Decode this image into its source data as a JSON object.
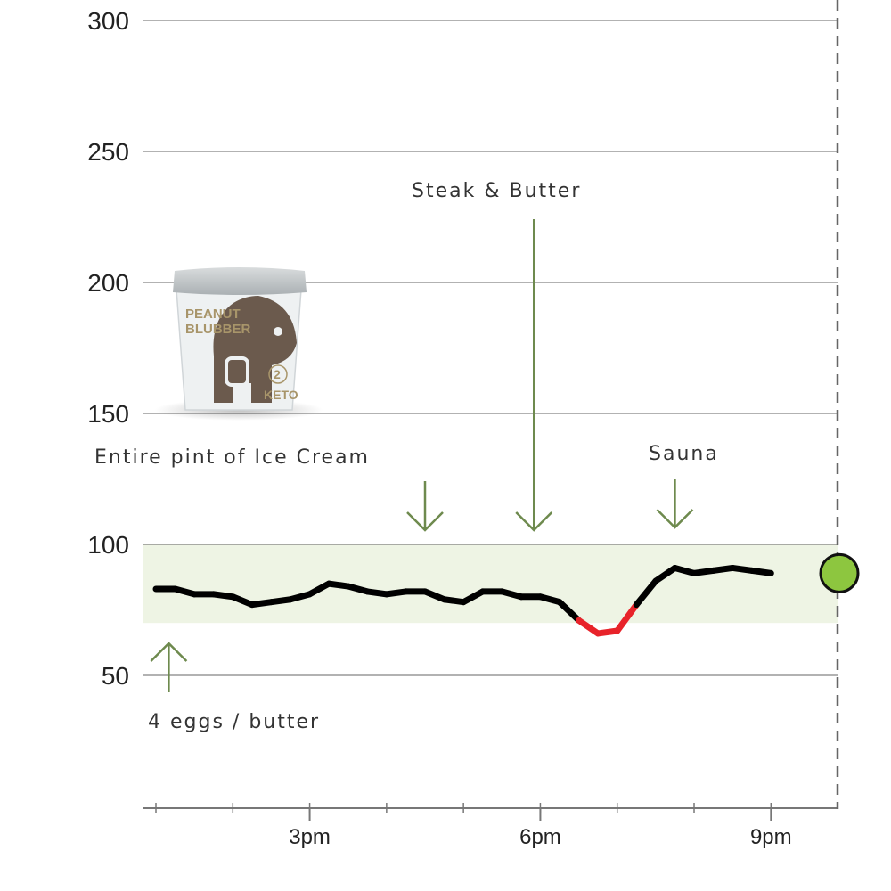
{
  "chart_data": {
    "type": "line",
    "title": "",
    "xlabel": "",
    "ylabel": "",
    "ylim": [
      0,
      300
    ],
    "yticks": [
      "50",
      "100",
      "150",
      "200",
      "250",
      "300"
    ],
    "x_tick_labels": [
      "3pm",
      "6pm",
      "9pm"
    ],
    "x_range_hours": [
      13.0,
      21.0
    ],
    "target_range": [
      70,
      100
    ],
    "grid": "horizontal",
    "series": [
      {
        "values_time": [
          "13:00",
          "13:15",
          "13:30",
          "13:45",
          "14:00",
          "14:15",
          "14:30",
          "14:45",
          "15:00",
          "15:15",
          "15:30",
          "15:45",
          "16:00",
          "16:15",
          "16:30",
          "16:45",
          "17:00",
          "17:15",
          "17:30",
          "17:45",
          "18:00",
          "18:15",
          "18:30",
          "18:45",
          "19:00",
          "19:15",
          "19:30",
          "19:45",
          "20:00",
          "20:15",
          "20:30",
          "20:45",
          "21:00"
        ],
        "values": [
          83,
          83,
          81,
          81,
          80,
          77,
          78,
          79,
          81,
          85,
          84,
          82,
          81,
          82,
          82,
          79,
          78,
          82,
          82,
          80,
          80,
          78,
          71,
          66,
          67,
          77,
          86,
          91,
          89,
          90,
          91,
          90,
          89
        ],
        "low_threshold": 70,
        "normal_color": "#000000",
        "low_color": "#e8232a"
      }
    ],
    "current_marker": {
      "value": 89,
      "color": "#8dc63f"
    },
    "annotations": [
      {
        "label": "4 eggs / butter",
        "time": "13:10",
        "direction": "up"
      },
      {
        "label": "Entire pint of Ice Cream",
        "time": "16:30",
        "direction": "down"
      },
      {
        "label": "Steak & Butter",
        "time": "17:55",
        "direction": "down"
      },
      {
        "label": "Sauna",
        "time": "19:45",
        "direction": "down"
      }
    ],
    "colors": {
      "range_fill": "#eef4e4",
      "range_border": "#b7c8a0",
      "grid": "#999999",
      "arrow": "#6e8a4e",
      "marker_outline": "#111111"
    }
  },
  "product": {
    "brand_line1": "PEANUT",
    "brand_line2": "BLUBBER",
    "badge": "KETO",
    "net_carbs": "2"
  }
}
